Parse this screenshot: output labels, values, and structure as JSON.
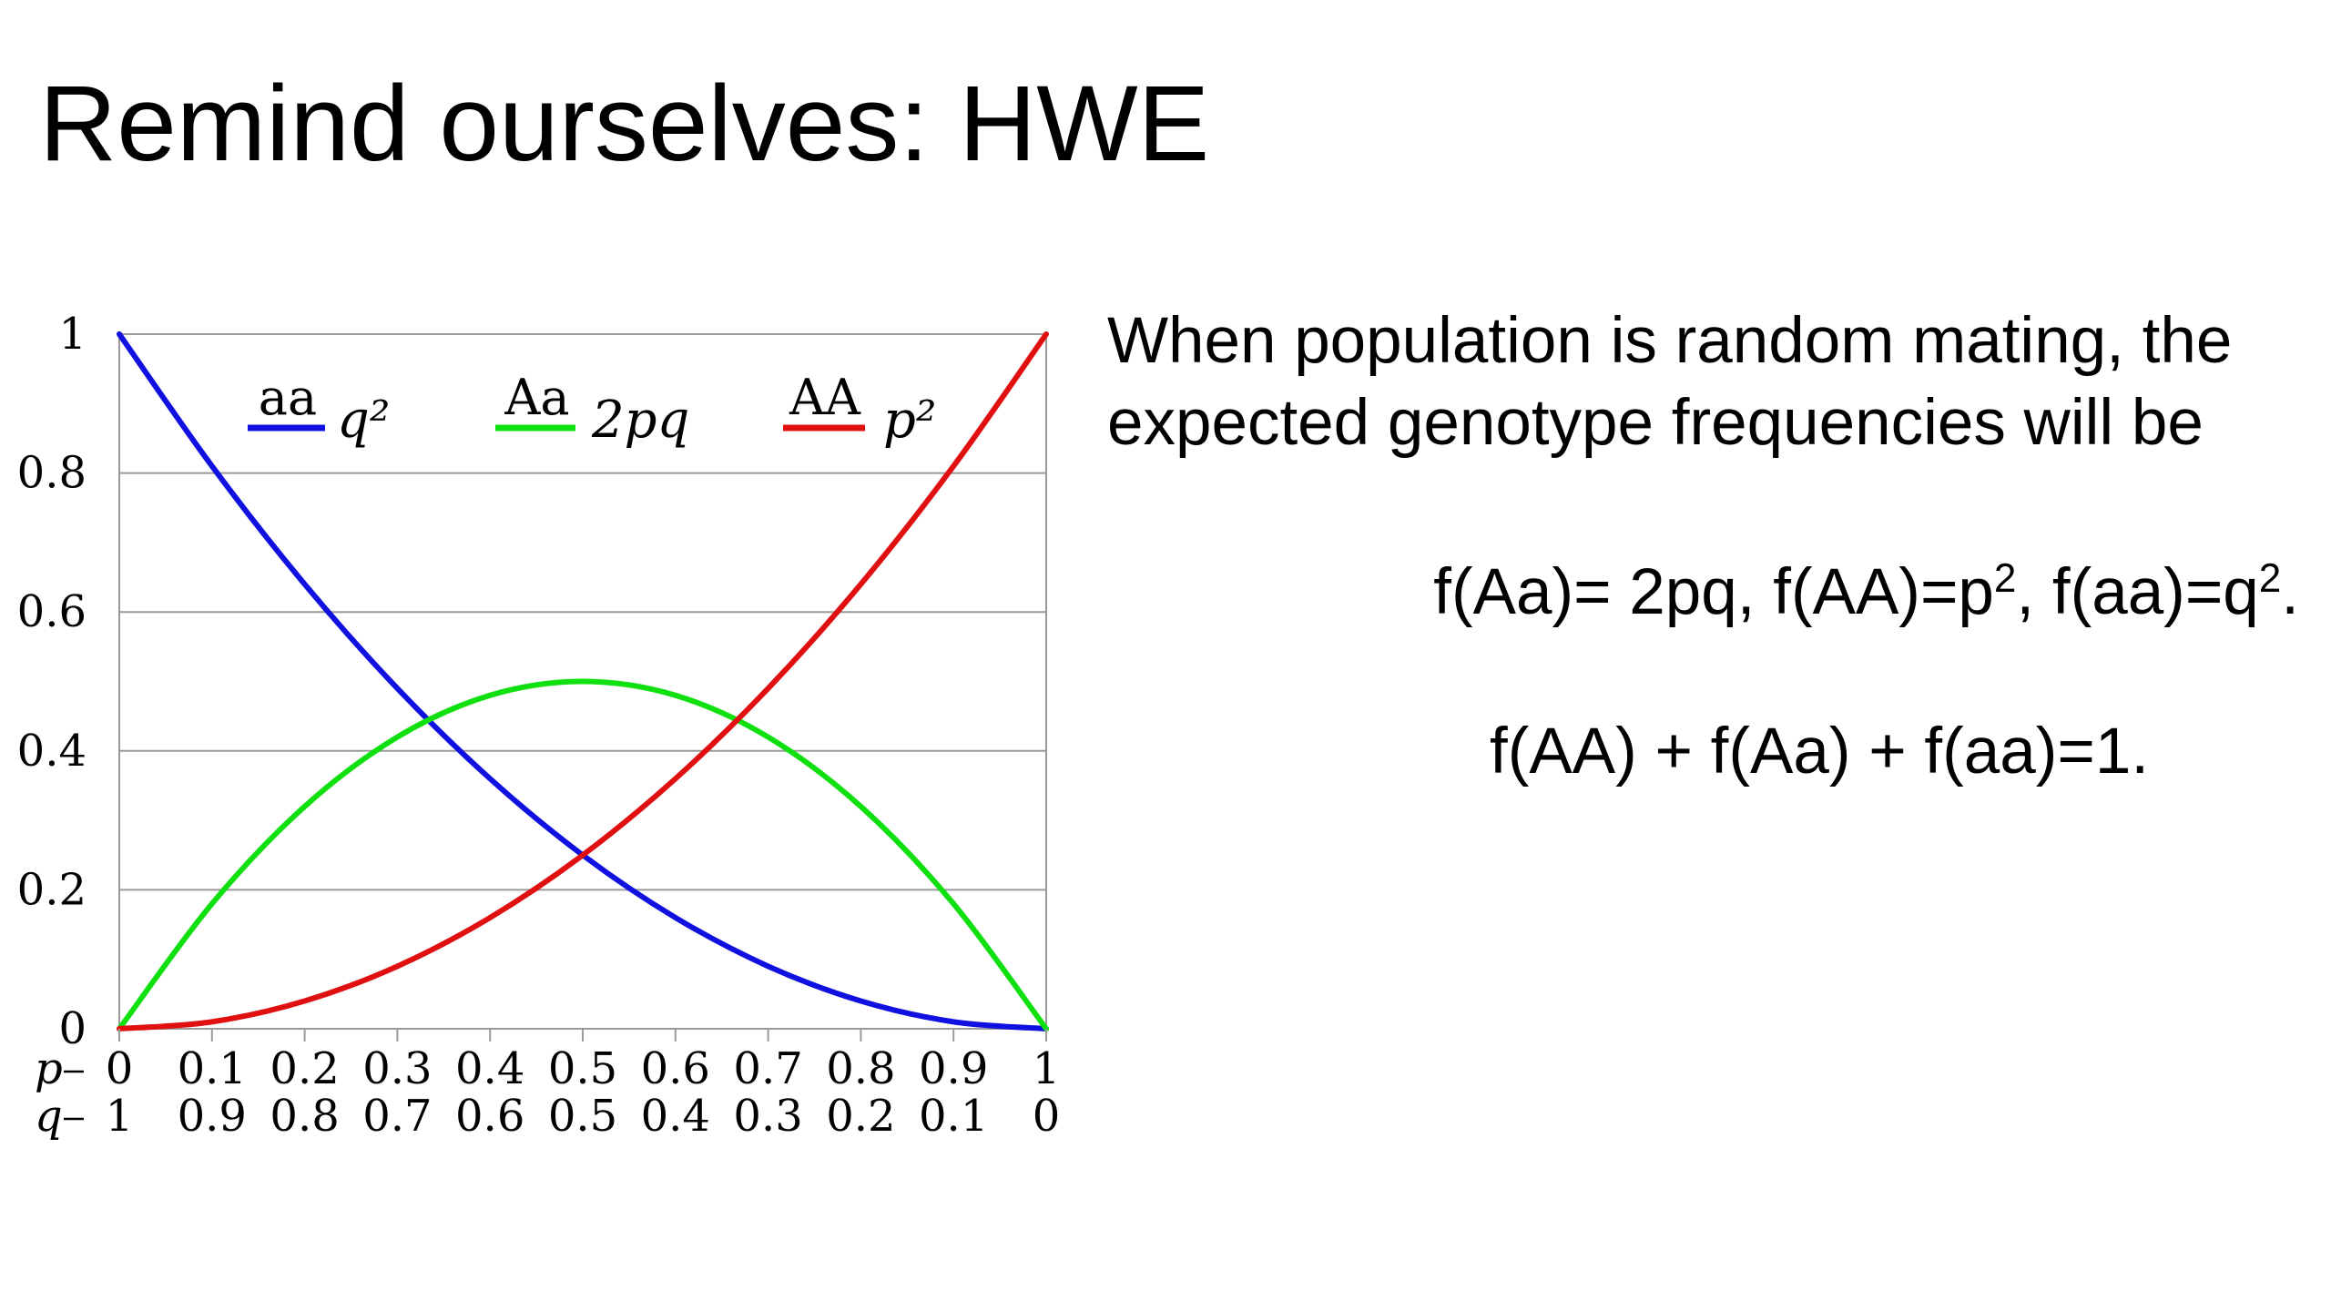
{
  "slide": {
    "title": "Remind ourselves: HWE",
    "explanation": "When population is random mating, the expected genotype frequencies will be",
    "formula1": {
      "part1": "f(Aa)= 2pq, f(AA)=p",
      "sup1": "2",
      "part2": ", f(aa)=q",
      "sup2": "2",
      "part3": "."
    },
    "formula2": "f(AA) + f(Aa) + f(aa)=1."
  },
  "chart_data": {
    "type": "line",
    "x": [
      0,
      0.1,
      0.2,
      0.3,
      0.4,
      0.5,
      0.6,
      0.7,
      0.8,
      0.9,
      1
    ],
    "ylim": [
      0,
      1
    ],
    "yticks": [
      "0",
      "0.2",
      "0.4",
      "0.6",
      "0.8",
      "1"
    ],
    "p_var": "p",
    "q_var": "q",
    "p_tick_labels": [
      "0",
      "0.1",
      "0.2",
      "0.3",
      "0.4",
      "0.5",
      "0.6",
      "0.7",
      "0.8",
      "0.9",
      "1"
    ],
    "q_tick_labels": [
      "1",
      "0.9",
      "0.8",
      "0.7",
      "0.6",
      "0.5",
      "0.4",
      "0.3",
      "0.2",
      "0.1",
      "0"
    ],
    "grid": true,
    "legend_position": "top",
    "series": [
      {
        "name": "aa",
        "formula": "q²",
        "color": "#1010e0",
        "values": [
          1,
          0.81,
          0.64,
          0.49,
          0.36,
          0.25,
          0.16,
          0.09,
          0.04,
          0.01,
          0
        ]
      },
      {
        "name": "Aa",
        "formula": "2pq",
        "color": "#10e010",
        "values": [
          0,
          0.18,
          0.32,
          0.42,
          0.48,
          0.5,
          0.48,
          0.42,
          0.32,
          0.18,
          0
        ]
      },
      {
        "name": "AA",
        "formula": "p²",
        "color": "#e01010",
        "values": [
          0,
          0.01,
          0.04,
          0.09,
          0.16,
          0.25,
          0.36,
          0.49,
          0.64,
          0.81,
          1
        ]
      }
    ]
  }
}
